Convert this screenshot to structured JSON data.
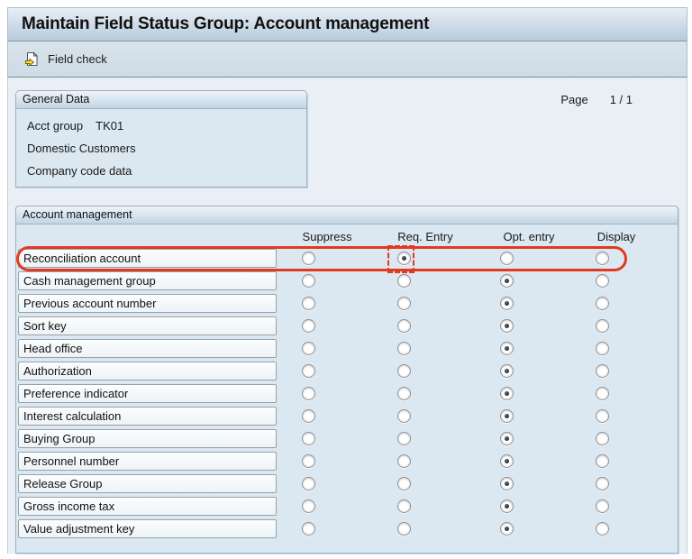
{
  "header": {
    "title": "Maintain Field Status Group: Account management"
  },
  "toolbar": {
    "field_check_label": "Field check",
    "field_check_icon": "page-with-yellow-arrow-icon"
  },
  "page_indicator": {
    "label": "Page",
    "value": "1  /  1"
  },
  "general": {
    "title": "General Data",
    "acct_group_label": "Acct group",
    "acct_group_value": "TK01",
    "line2": "Domestic Customers",
    "line3": "Company code data"
  },
  "table": {
    "title": "Account management",
    "columns": [
      "Suppress",
      "Req. Entry",
      "Opt. entry",
      "Display"
    ],
    "rows": [
      {
        "label": "Reconciliation account",
        "selected": "Req. Entry",
        "highlighted": true
      },
      {
        "label": "Cash management group",
        "selected": "Opt. entry"
      },
      {
        "label": "Previous account number",
        "selected": "Opt. entry"
      },
      {
        "label": "Sort key",
        "selected": "Opt. entry"
      },
      {
        "label": "Head office",
        "selected": "Opt. entry"
      },
      {
        "label": "Authorization",
        "selected": "Opt. entry"
      },
      {
        "label": "Preference indicator",
        "selected": "Opt. entry"
      },
      {
        "label": "Interest calculation",
        "selected": "Opt. entry"
      },
      {
        "label": "Buying Group",
        "selected": "Opt. entry"
      },
      {
        "label": "Personnel number",
        "selected": "Opt. entry"
      },
      {
        "label": "Release Group",
        "selected": "Opt. entry"
      },
      {
        "label": "Gross income tax",
        "selected": "Opt. entry"
      },
      {
        "label": "Value adjustment key",
        "selected": "Opt. entry"
      }
    ]
  },
  "annotations": {
    "highlight_oval": {
      "color": "#e23a1e",
      "target": "Reconciliation account row"
    },
    "dashed_box": {
      "color": "#e23a1e",
      "target": "Req. Entry radio of Reconciliation account"
    }
  },
  "colors": {
    "titlebar_gradient_top": "#e8eff5",
    "titlebar_gradient_bottom": "#b6cbdc",
    "toolbar_bg": "#d4dfe8",
    "content_bg": "#e9eff4",
    "panel_bg": "#dbe7f1",
    "panel_header_bottom": "#c2d5e4",
    "radio_selected_dot": "#1e2733"
  }
}
